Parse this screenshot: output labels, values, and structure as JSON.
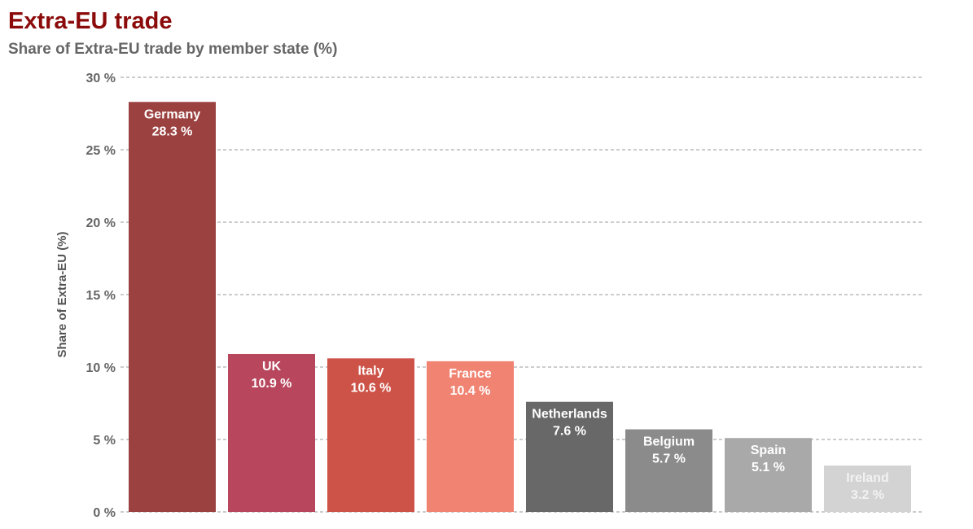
{
  "header": {
    "title": "Extra-EU trade",
    "subtitle": "Share of Extra-EU trade by member state (%)"
  },
  "chart_data": {
    "type": "bar",
    "title": "Extra-EU trade",
    "subtitle": "Share of Extra-EU trade by member state (%)",
    "xlabel": "",
    "ylabel": "Share of Extra-EU (%)",
    "ylim": [
      0,
      30
    ],
    "yticks": [
      0,
      5,
      10,
      15,
      20,
      25,
      30
    ],
    "ytick_labels": [
      "0 %",
      "5 %",
      "10 %",
      "15 %",
      "20 %",
      "25 %",
      "30 %"
    ],
    "grid": "horizontal dashed",
    "legend": "none",
    "categories": [
      "Germany",
      "UK",
      "Italy",
      "France",
      "Netherlands",
      "Belgium",
      "Spain",
      "Ireland"
    ],
    "values": [
      28.3,
      10.9,
      10.6,
      10.4,
      7.6,
      5.7,
      5.1,
      3.2
    ],
    "value_labels": [
      "28.3 %",
      "10.9 %",
      "10.6 %",
      "10.4 %",
      "7.6 %",
      "5.7 %",
      "5.1 %",
      "3.2 %"
    ],
    "colors": [
      "#9b4240",
      "#b8475d",
      "#cd5247",
      "#f08371",
      "#686868",
      "#8b8b8b",
      "#a9a9a9",
      "#d3d3d3"
    ],
    "label_colors": [
      "#ffffff",
      "#ffffff",
      "#ffffff",
      "#ffffff",
      "#ffffff",
      "#ffffff",
      "#ffffff",
      "#f2f2f2"
    ]
  }
}
